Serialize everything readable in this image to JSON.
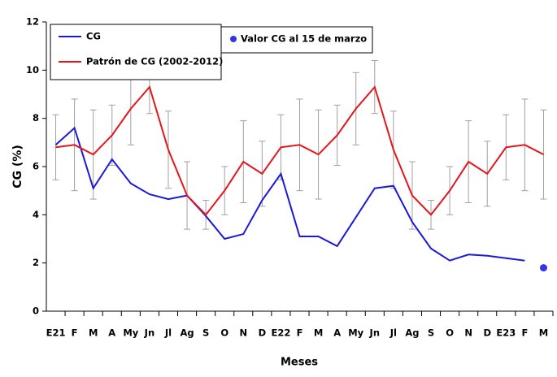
{
  "chart_data": {
    "type": "line",
    "y_label": "CG (%)",
    "x_label": "Meses",
    "categories": [
      "E21",
      "F",
      "M",
      "A",
      "My",
      "Jn",
      "Jl",
      "Ag",
      "S",
      "O",
      "N",
      "D",
      "E22",
      "F",
      "M",
      "A",
      "My",
      "Jn",
      "Jl",
      "Ag",
      "S",
      "O",
      "N",
      "D",
      "E23",
      "F",
      "M"
    ],
    "ylim": [
      0,
      12
    ],
    "yticks": [
      0,
      2,
      4,
      6,
      8,
      10,
      12
    ],
    "series": [
      {
        "name": "CG",
        "color": "#1a1ad6",
        "values": [
          6.9,
          7.6,
          5.1,
          6.3,
          5.3,
          4.85,
          4.65,
          4.8,
          3.95,
          3.0,
          3.2,
          4.6,
          5.7,
          3.1,
          3.1,
          2.7,
          3.9,
          5.1,
          5.2,
          3.7,
          2.6,
          2.1,
          2.35,
          2.3,
          2.2,
          2.1,
          null
        ]
      },
      {
        "name": "Patrón  de CG (2002-2012)",
        "color": "#e3161c",
        "error_color": "#a0a0a0",
        "values": [
          6.8,
          6.9,
          6.5,
          7.3,
          8.4,
          9.3,
          6.7,
          4.8,
          4.0,
          5.0,
          6.2,
          5.7,
          6.8,
          6.9,
          6.5,
          7.3,
          8.4,
          9.3,
          6.7,
          4.8,
          4.0,
          5.0,
          6.2,
          5.7,
          6.8,
          6.9,
          6.5
        ],
        "errors": [
          1.35,
          1.9,
          1.85,
          1.25,
          1.5,
          1.1,
          1.6,
          1.4,
          0.6,
          1.0,
          1.7,
          1.35,
          1.35,
          1.9,
          1.85,
          1.25,
          1.5,
          1.1,
          1.6,
          1.4,
          0.6,
          1.0,
          1.7,
          1.35,
          1.35,
          1.9,
          1.85
        ]
      },
      {
        "name": "Valor CG al 15 de marzo",
        "color": "#3333ee",
        "marker": "point",
        "values": [
          null,
          null,
          null,
          null,
          null,
          null,
          null,
          null,
          null,
          null,
          null,
          null,
          null,
          null,
          null,
          null,
          null,
          null,
          null,
          null,
          null,
          null,
          null,
          null,
          null,
          null,
          1.8
        ]
      }
    ]
  }
}
